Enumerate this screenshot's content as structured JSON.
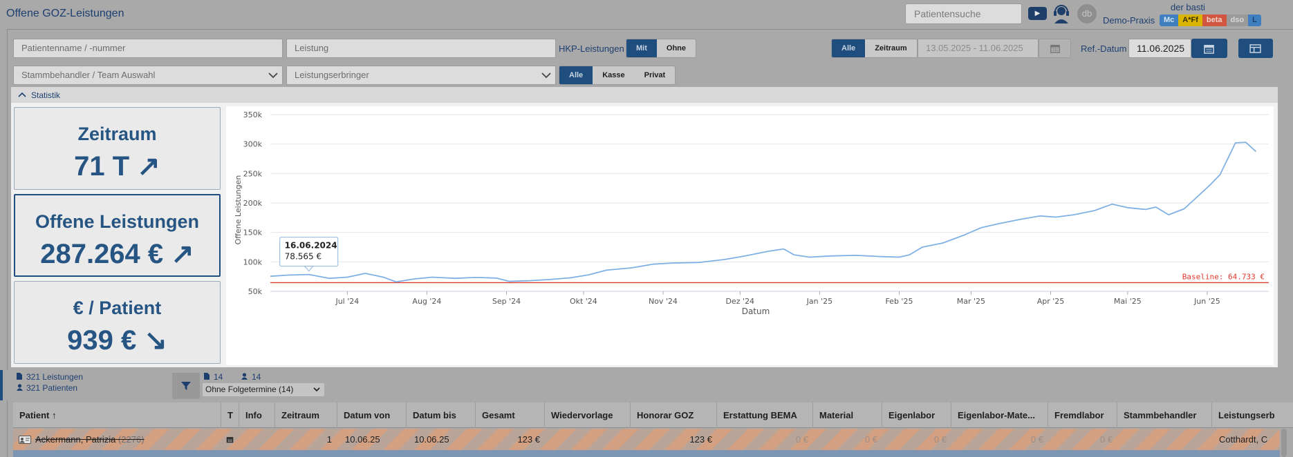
{
  "header": {
    "title": "Offene GOZ-Leistungen",
    "patient_search_placeholder": "Patientensuche",
    "user_name": "der basti",
    "praxis": "Demo-Praxis",
    "avatar_initials": "db",
    "badges": [
      {
        "label": "Mc",
        "bg": "#3f7fbf",
        "fg": "#d6e3f2"
      },
      {
        "label": "A*Ff",
        "bg": "#d9b400",
        "fg": "#3a2f00"
      },
      {
        "label": "beta",
        "bg": "#d1553f",
        "fg": "#f2d6cf"
      },
      {
        "label": "dso",
        "bg": "#9a9a9a",
        "fg": "#d8d8d8"
      },
      {
        "label": "L",
        "bg": "#3f7fbf",
        "fg": "#1d3f70"
      }
    ]
  },
  "filters": {
    "patient_placeholder": "Patientenname / -nummer",
    "leistung_placeholder": "Leistung",
    "hkp_label": "HKP-Leistungen",
    "hkp_options": [
      "Mit",
      "Ohne"
    ],
    "stammbehandler_select": "Stammbehandler / Team Auswahl",
    "leistungserbringer_select": "Leistungserbringer",
    "kasse_options": [
      "Alle",
      "Kasse",
      "Privat"
    ],
    "zeitraum_options": [
      "Alle",
      "Zeitraum"
    ],
    "date_range": "13.05.2025 - 11.06.2025",
    "ref_label": "Ref.-Datum",
    "ref_date": "11.06.2025"
  },
  "stats": {
    "section_title": "Statistik",
    "kpis": [
      {
        "title": "Zeitraum",
        "value": "71 T ↗"
      },
      {
        "title": "Offene Leistungen",
        "value": "287.264 € ↗"
      },
      {
        "title": "€ / Patient",
        "value": "939 € ↘"
      }
    ]
  },
  "chart_data": {
    "type": "line",
    "xlabel": "Datum",
    "ylabel": "Offene Leistungen",
    "ylim": [
      50000,
      350000
    ],
    "yticks": [
      "50k",
      "100k",
      "150k",
      "200k",
      "250k",
      "300k",
      "350k"
    ],
    "xticks": [
      "Jul '24",
      "Aug '24",
      "Sep '24",
      "Okt '24",
      "Nov '24",
      "Dez '24",
      "Jan '25",
      "Feb '25",
      "Mar '25",
      "Apr '25",
      "Mai '25",
      "Jun '25"
    ],
    "series": [
      {
        "values": [
          [
            "2024-06-01",
            75500
          ],
          [
            "2024-06-08",
            77500
          ],
          [
            "2024-06-16",
            78565
          ],
          [
            "2024-06-24",
            72000
          ],
          [
            "2024-07-01",
            74000
          ],
          [
            "2024-07-08",
            80500
          ],
          [
            "2024-07-15",
            74000
          ],
          [
            "2024-07-20",
            66000
          ],
          [
            "2024-07-27",
            71000
          ],
          [
            "2024-08-03",
            74000
          ],
          [
            "2024-08-12",
            72000
          ],
          [
            "2024-08-20",
            73500
          ],
          [
            "2024-08-28",
            72500
          ],
          [
            "2024-09-02",
            67000
          ],
          [
            "2024-09-10",
            68000
          ],
          [
            "2024-09-18",
            70000
          ],
          [
            "2024-09-26",
            73000
          ],
          [
            "2024-10-03",
            78000
          ],
          [
            "2024-10-10",
            86000
          ],
          [
            "2024-10-20",
            90000
          ],
          [
            "2024-10-28",
            96000
          ],
          [
            "2024-11-05",
            98000
          ],
          [
            "2024-11-15",
            99000
          ],
          [
            "2024-11-25",
            104000
          ],
          [
            "2024-12-03",
            110000
          ],
          [
            "2024-12-12",
            118000
          ],
          [
            "2024-12-18",
            122000
          ],
          [
            "2024-12-22",
            112000
          ],
          [
            "2024-12-28",
            108000
          ],
          [
            "2025-01-05",
            110000
          ],
          [
            "2025-01-15",
            111000
          ],
          [
            "2025-01-25",
            109000
          ],
          [
            "2025-02-01",
            108000
          ],
          [
            "2025-02-05",
            112000
          ],
          [
            "2025-02-10",
            125000
          ],
          [
            "2025-02-18",
            132000
          ],
          [
            "2025-02-26",
            145000
          ],
          [
            "2025-03-05",
            158000
          ],
          [
            "2025-03-12",
            165000
          ],
          [
            "2025-03-20",
            172000
          ],
          [
            "2025-03-28",
            178000
          ],
          [
            "2025-04-03",
            176000
          ],
          [
            "2025-04-10",
            180000
          ],
          [
            "2025-04-18",
            187000
          ],
          [
            "2025-04-25",
            198000
          ],
          [
            "2025-05-01",
            192000
          ],
          [
            "2025-05-08",
            189000
          ],
          [
            "2025-05-12",
            193000
          ],
          [
            "2025-05-17",
            180000
          ],
          [
            "2025-05-23",
            190000
          ],
          [
            "2025-05-28",
            210000
          ],
          [
            "2025-06-02",
            230000
          ],
          [
            "2025-06-06",
            248000
          ],
          [
            "2025-06-09",
            275000
          ],
          [
            "2025-06-12",
            302000
          ],
          [
            "2025-06-16",
            303000
          ],
          [
            "2025-06-20",
            287264
          ]
        ]
      }
    ],
    "baseline": {
      "label": "Baseline: 64.733 €",
      "value": 64733,
      "color": "#e0392b"
    },
    "tooltip": {
      "date": "16.06.2024",
      "value": "78.565 €",
      "x": "2024-06-16"
    },
    "line_color": "#7fb0e4",
    "grid": true
  },
  "summary": {
    "leistungen": "321 Leistungen",
    "patienten": "321 Patienten",
    "filtered_leistungen": "14",
    "filtered_patienten": "14",
    "folge_select": "Ohne Folgetermine (14)"
  },
  "table": {
    "columns": [
      {
        "label": "Patient ↑"
      },
      {
        "label": "T"
      },
      {
        "label": "Info"
      },
      {
        "label": "Zeitraum"
      },
      {
        "label": "Datum von"
      },
      {
        "label": "Datum bis"
      },
      {
        "label": "Gesamt"
      },
      {
        "label": "Wiedervorlage"
      },
      {
        "label": "Honorar GOZ"
      },
      {
        "label": "Erstattung BEMA"
      },
      {
        "label": "Material"
      },
      {
        "label": "Eigenlabor"
      },
      {
        "label": "Eigenlabor-Mate..."
      },
      {
        "label": "Fremdlabor"
      },
      {
        "label": "Stammbehandler"
      },
      {
        "label": "Leistungserb"
      }
    ],
    "row1": {
      "patient": "Ackermann, Patrizia",
      "patient_nr": "(2276)",
      "zeitraum": "1",
      "von": "10.06.25",
      "bis": "10.06.25",
      "gesamt": "123 €",
      "honorar": "123 €",
      "bema": "0 €",
      "material": "0 €",
      "eigenlabor": "0 €",
      "eigen_mat": "0 €",
      "fremd": "0 €",
      "leistungserbringer": "Cotthardt, C"
    }
  }
}
